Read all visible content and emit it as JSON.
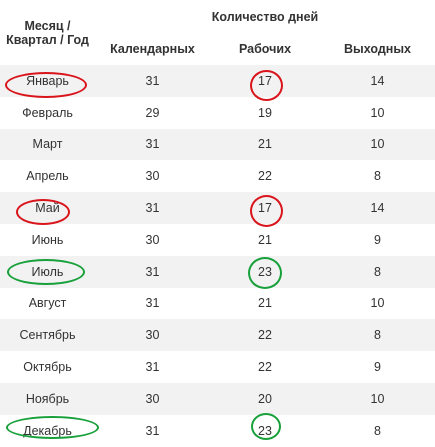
{
  "header": {
    "month_col": "Месяц / Квартал / Год",
    "days_group": "Количество дней",
    "calendar": "Календарных",
    "working": "Рабочих",
    "weekend": "Выходных"
  },
  "rows": [
    {
      "month": "Январь",
      "calendar": "31",
      "working": "17",
      "weekend": "14"
    },
    {
      "month": "Февраль",
      "calendar": "29",
      "working": "19",
      "weekend": "10"
    },
    {
      "month": "Март",
      "calendar": "31",
      "working": "21",
      "weekend": "10"
    },
    {
      "month": "Апрель",
      "calendar": "30",
      "working": "22",
      "weekend": "8"
    },
    {
      "month": "Май",
      "calendar": "31",
      "working": "17",
      "weekend": "14"
    },
    {
      "month": "Июнь",
      "calendar": "30",
      "working": "21",
      "weekend": "9"
    },
    {
      "month": "Июль",
      "calendar": "31",
      "working": "23",
      "weekend": "8"
    },
    {
      "month": "Август",
      "calendar": "31",
      "working": "21",
      "weekend": "10"
    },
    {
      "month": "Сентябрь",
      "calendar": "30",
      "working": "22",
      "weekend": "8"
    },
    {
      "month": "Октябрь",
      "calendar": "31",
      "working": "22",
      "weekend": "9"
    },
    {
      "month": "Ноябрь",
      "calendar": "30",
      "working": "20",
      "weekend": "10"
    },
    {
      "month": "Декабрь",
      "calendar": "31",
      "working": "23",
      "weekend": "8"
    }
  ],
  "annotations": {
    "red_color": "#d9141b",
    "green_color": "#18a03a",
    "red_marked_months": [
      "Январь",
      "Май"
    ],
    "green_marked_months": [
      "Июль",
      "Декабрь"
    ]
  }
}
